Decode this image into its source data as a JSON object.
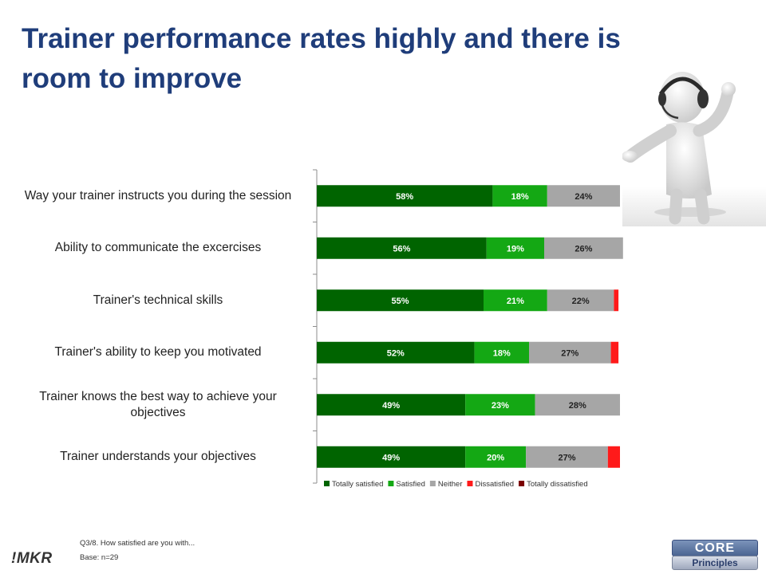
{
  "slide": {
    "title": "Trainer performance rates highly and there is room to improve",
    "footnote_question": "Q3/8. How satisfied are you with...",
    "footnote_base": "Base: n=29",
    "logo_left": "!MKR",
    "logo_right_top": "CORE",
    "logo_right_bottom": "Principles",
    "figure_icon": "person-with-headset-icon"
  },
  "chart_data": {
    "type": "bar",
    "orientation": "horizontal",
    "stacked": true,
    "categories": [
      "Way your trainer instructs you during the session",
      "Ability to communicate the excercises",
      "Trainer's technical skills",
      "Trainer's ability to keep you motivated",
      "Trainer knows the best way to achieve your objectives",
      "Trainer understands your objectives"
    ],
    "series": [
      {
        "name": "Totally satisfied",
        "color": "#006400",
        "label_color": "#ffffff",
        "values": [
          58,
          56,
          55,
          52,
          49,
          49
        ],
        "labels": [
          "58%",
          "56%",
          "55%",
          "52%",
          "49%",
          "49%"
        ]
      },
      {
        "name": "Satisfied",
        "color": "#14a814",
        "label_color": "#ffffff",
        "values": [
          18,
          19,
          21,
          18,
          23,
          20
        ],
        "labels": [
          "18%",
          "19%",
          "21%",
          "18%",
          "23%",
          "20%"
        ]
      },
      {
        "name": "Neither",
        "color": "#a6a6a6",
        "label_color": "#222222",
        "values": [
          24,
          26,
          22,
          27,
          28,
          27
        ],
        "labels": [
          "24%",
          "26%",
          "22%",
          "27%",
          "28%",
          "27%"
        ]
      },
      {
        "name": "Dissatisfied",
        "color": "#ff1a1a",
        "label_color": "#ffffff",
        "values": [
          0,
          0,
          1.5,
          2.5,
          0,
          4
        ],
        "labels": [
          "",
          "",
          "",
          "",
          "",
          ""
        ]
      },
      {
        "name": "Totally dissatisfied",
        "color": "#7a0000",
        "label_color": "#ffffff",
        "values": [
          0,
          0,
          0,
          0,
          0,
          0
        ],
        "labels": [
          "",
          "",
          "",
          "",
          "",
          ""
        ]
      }
    ],
    "xlim": [
      0,
      100
    ],
    "grid": false,
    "legend": "bottom"
  }
}
